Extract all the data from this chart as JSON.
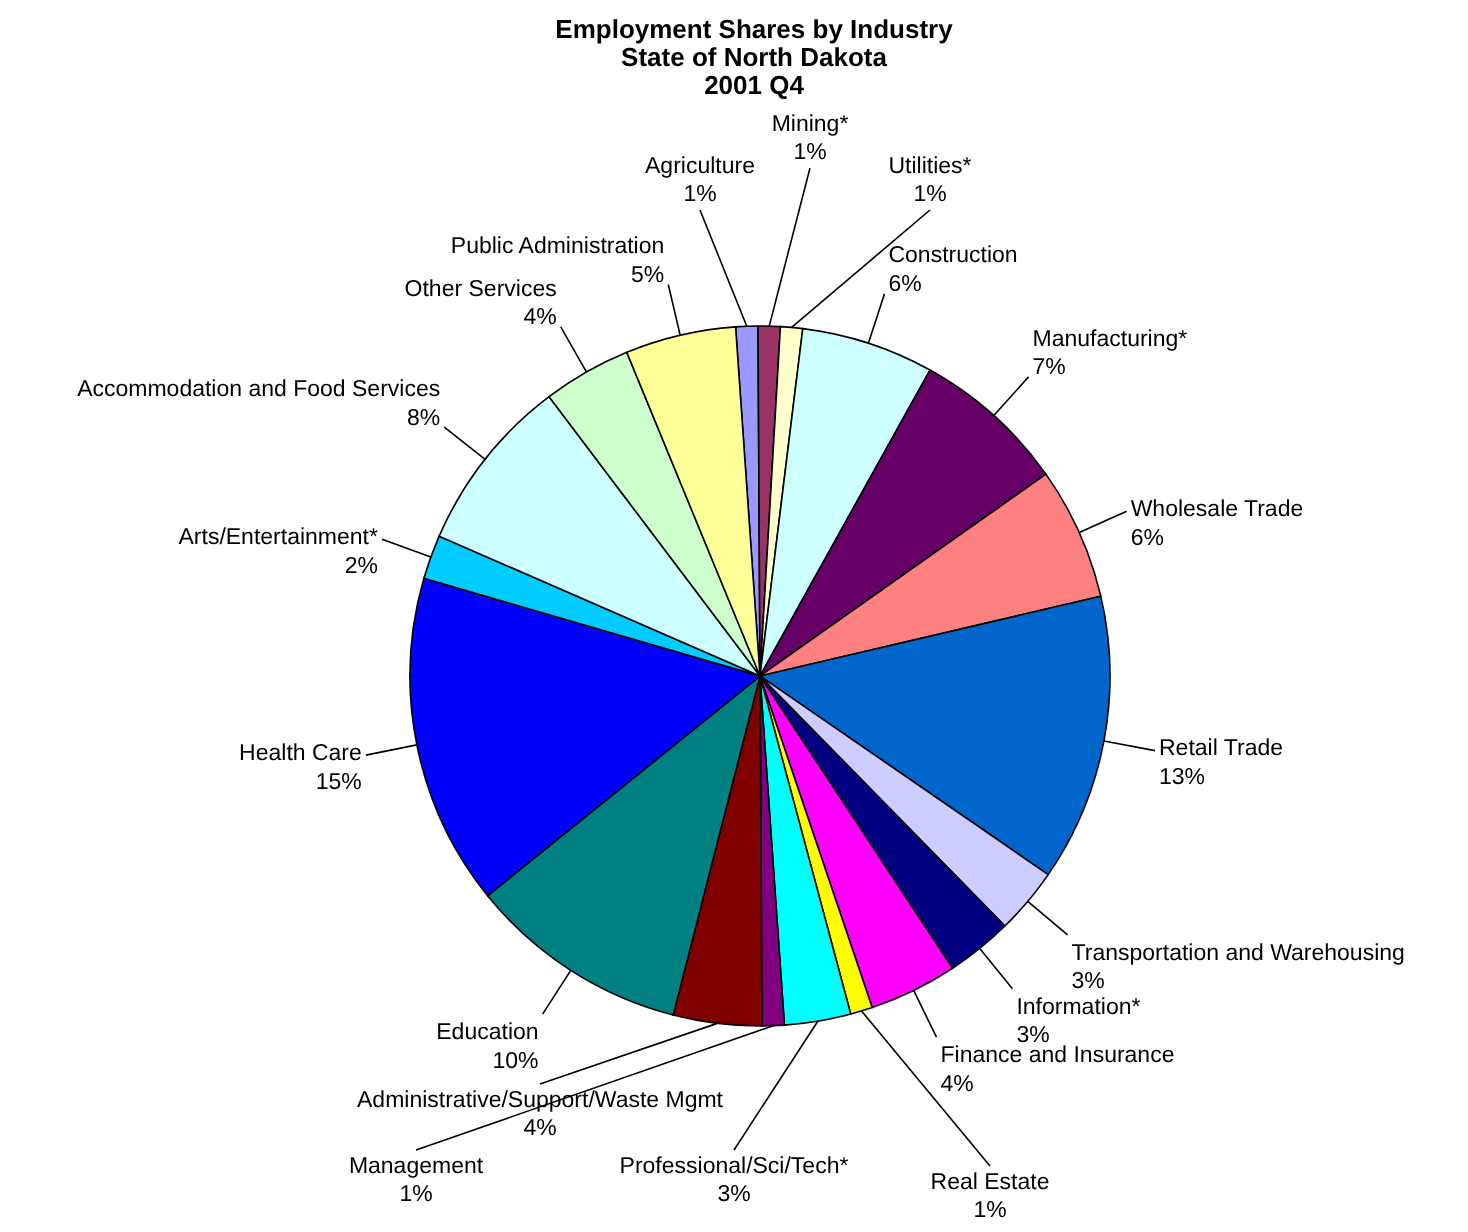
{
  "chart_data": {
    "type": "pie",
    "title": "Employment Shares by Industry\nState of North Dakota\n2001 Q4",
    "categories": [
      "Agriculture",
      "Mining*",
      "Utilities*",
      "Construction",
      "Manufacturing*",
      "Wholesale Trade",
      "Retail Trade",
      "Transportation and Warehousing",
      "Information*",
      "Finance and Insurance",
      "Real Estate",
      "Professional/Sci/Tech*",
      "Management",
      "Administrative/Support/Waste Mgmt",
      "Education",
      "Health Care",
      "Arts/Entertainment*",
      "Accommodation and Food Services",
      "Other Services",
      "Public Administration"
    ],
    "values": [
      1,
      1,
      1,
      6,
      7,
      6,
      13,
      3,
      3,
      4,
      1,
      3,
      1,
      4,
      10,
      15,
      2,
      8,
      4,
      5
    ],
    "value_labels": [
      "1%",
      "1%",
      "1%",
      "6%",
      "7%",
      "6%",
      "13%",
      "3%",
      "3%",
      "4%",
      "1%",
      "3%",
      "1%",
      "4%",
      "10%",
      "15%",
      "2%",
      "8%",
      "4%",
      "5%"
    ],
    "colors": [
      "#9999ff",
      "#993366",
      "#ffffcc",
      "#ccfffe",
      "#660066",
      "#ff8080",
      "#0066cc",
      "#ccccff",
      "#000080",
      "#ff00ff",
      "#ffff00",
      "#00ffff",
      "#800080",
      "#800000",
      "#008080",
      "#0000ff",
      "#00ccff",
      "#ccffff",
      "#ccffcc",
      "#ffff99"
    ],
    "legend": false
  }
}
